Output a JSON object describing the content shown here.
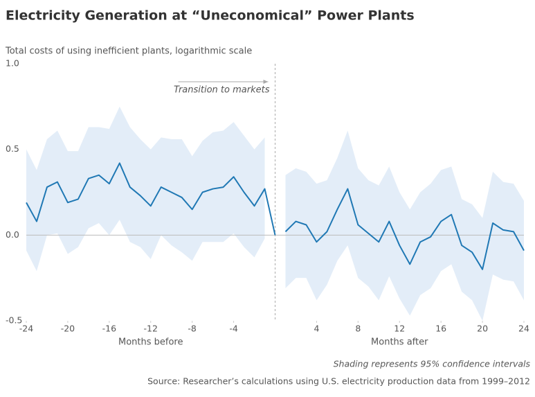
{
  "chart_data": {
    "type": "line",
    "title": "Electricity Generation at “Uneconomical” Power Plants",
    "subtitle": "Total costs of using inefficient plants, logarithmic scale",
    "xlim": [
      -24,
      24
    ],
    "xticks": [
      -24,
      -20,
      -16,
      -12,
      -8,
      -4,
      4,
      8,
      12,
      16,
      20,
      24
    ],
    "ylim": [
      -0.5,
      1.0
    ],
    "yticks": [
      {
        "value": 1.0,
        "label": "1.0"
      },
      0.5,
      {
        "value": 0.0,
        "label": "0.0"
      },
      -0.5
    ],
    "zero_line": true,
    "x_labels": [
      "Months before",
      "Months after"
    ],
    "annotation": "Transition to markets",
    "transition_x": 0,
    "note": "Shading represents 95% confidence intervals",
    "source": "Source: Researcher’s calculations using U.S. electricity production data from 1999–2012",
    "band_color": "#e3edf8",
    "series": [
      {
        "color": "#1f78b4",
        "x": [
          -24,
          -23,
          -22,
          -21,
          -20,
          -19,
          -18,
          -17,
          -16,
          -15,
          -14,
          -13,
          -12,
          -11,
          -10,
          -9,
          -8,
          -7,
          -6,
          -5,
          -4,
          -3,
          -2,
          -1,
          0
        ],
        "values": [
          0.19,
          0.08,
          0.28,
          0.31,
          0.19,
          0.21,
          0.33,
          0.35,
          0.3,
          0.42,
          0.28,
          0.23,
          0.17,
          0.28,
          0.25,
          0.22,
          0.15,
          0.25,
          0.27,
          0.28,
          0.34,
          0.25,
          0.17,
          0.27,
          0.0
        ],
        "upper": [
          0.5,
          0.38,
          0.56,
          0.61,
          0.49,
          0.49,
          0.63,
          0.63,
          0.62,
          0.75,
          0.63,
          0.56,
          0.5,
          0.57,
          0.56,
          0.56,
          0.46,
          0.55,
          0.6,
          0.61,
          0.66,
          0.58,
          0.5,
          0.57,
          null
        ],
        "lower": [
          -0.09,
          -0.21,
          0.0,
          0.01,
          -0.11,
          -0.07,
          0.04,
          0.07,
          0.0,
          0.09,
          -0.04,
          -0.07,
          -0.14,
          0.0,
          -0.06,
          -0.1,
          -0.15,
          -0.04,
          -0.04,
          -0.04,
          0.01,
          -0.07,
          -0.13,
          -0.02,
          null
        ]
      },
      {
        "color": "#1f78b4",
        "x": [
          1,
          2,
          3,
          4,
          5,
          6,
          7,
          8,
          9,
          10,
          11,
          12,
          13,
          14,
          15,
          16,
          17,
          18,
          19,
          20,
          21,
          22,
          23,
          24
        ],
        "values": [
          0.02,
          0.08,
          0.06,
          -0.04,
          0.02,
          0.15,
          0.27,
          0.06,
          0.01,
          -0.04,
          0.08,
          -0.06,
          -0.17,
          -0.04,
          -0.01,
          0.08,
          0.12,
          -0.06,
          -0.1,
          -0.2,
          0.07,
          0.03,
          0.02,
          -0.09
        ],
        "upper": [
          0.35,
          0.39,
          0.37,
          0.3,
          0.32,
          0.45,
          0.61,
          0.39,
          0.32,
          0.29,
          0.4,
          0.25,
          0.15,
          0.25,
          0.3,
          0.38,
          0.4,
          0.21,
          0.18,
          0.1,
          0.37,
          0.31,
          0.3,
          0.2
        ],
        "lower": [
          -0.31,
          -0.25,
          -0.25,
          -0.38,
          -0.29,
          -0.15,
          -0.06,
          -0.25,
          -0.3,
          -0.38,
          -0.24,
          -0.37,
          -0.47,
          -0.35,
          -0.31,
          -0.21,
          -0.17,
          -0.33,
          -0.38,
          -0.5,
          -0.23,
          -0.26,
          -0.27,
          -0.38
        ]
      }
    ]
  }
}
